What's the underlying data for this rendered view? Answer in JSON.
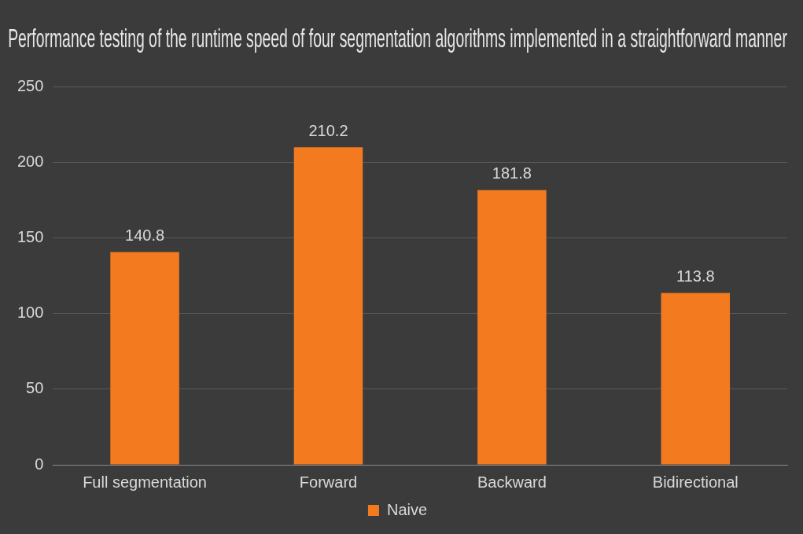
{
  "chart_data": {
    "type": "bar",
    "title": "Performance testing of the runtime speed of four segmentation algorithms implemented in a straightforward manner",
    "categories": [
      "Full segmentation",
      "Forward",
      "Backward",
      "Bidirectional"
    ],
    "series": [
      {
        "name": "Naive",
        "color": "#f47a20",
        "values": [
          140.8,
          210.2,
          181.8,
          113.8
        ]
      }
    ],
    "ylim": [
      0,
      250
    ],
    "yticks": [
      0,
      50,
      100,
      150,
      200,
      250
    ],
    "grid": "y",
    "legend": "bottom",
    "data_labels": true
  }
}
